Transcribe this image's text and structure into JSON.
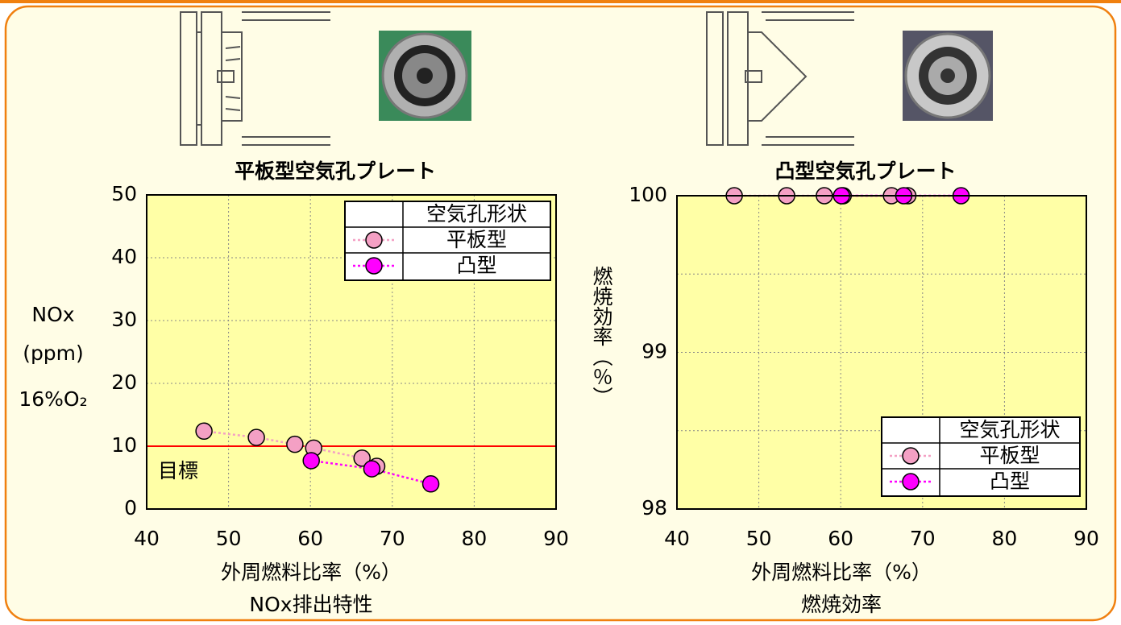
{
  "chart_data": [
    {
      "type": "scatter",
      "title": "平板型空気孔プレート",
      "xlabel": "外周燃料比率（%）",
      "caption": "NOx排出特性",
      "ylabel": [
        "NOx",
        "(ppm)",
        "16%O₂"
      ],
      "xlim": [
        40,
        90
      ],
      "xticks": [
        40,
        50,
        60,
        70,
        80,
        90
      ],
      "ylim": [
        0,
        50
      ],
      "yticks": [
        0,
        10,
        20,
        30,
        40,
        50
      ],
      "grid": true,
      "plot_color": "#ffffa6",
      "reference_line": {
        "value": 10,
        "label": "目標",
        "color": "#ff0000"
      },
      "legend_title": "空気孔形状",
      "legend": "upper right",
      "series": [
        {
          "name": "平板型",
          "color": "#f4a0c4",
          "x": [
            47,
            53.4,
            58.1,
            60.4,
            66.3,
            68.1
          ],
          "values": [
            12.4,
            11.4,
            10.3,
            9.7,
            8.1,
            6.8
          ]
        },
        {
          "name": "凸型",
          "color": "#ff00ff",
          "x": [
            60.1,
            67.5,
            74.7
          ],
          "values": [
            7.7,
            6.4,
            4.0
          ]
        }
      ]
    },
    {
      "type": "scatter",
      "title": "凸型空気孔プレート",
      "xlabel": "外周燃料比率（%）",
      "caption": "燃焼効率",
      "ylabel": [
        "燃焼効率（％）"
      ],
      "xlim": [
        40,
        90
      ],
      "xticks": [
        40,
        50,
        60,
        70,
        80,
        90
      ],
      "ylim": [
        98,
        100
      ],
      "yticks": [
        98,
        99,
        100
      ],
      "minor_yticks": [
        98.5,
        99.5
      ],
      "grid": true,
      "plot_color": "#ffffa6",
      "legend_title": "空気孔形状",
      "legend": "lower right",
      "series": [
        {
          "name": "平板型",
          "color": "#f4a0c4",
          "x": [
            47,
            53.4,
            58,
            60.3,
            66.2,
            68.2
          ],
          "values": [
            100,
            100,
            100,
            100,
            100,
            100
          ]
        },
        {
          "name": "凸型",
          "color": "#ff00ff",
          "x": [
            60.1,
            67.7,
            74.7
          ],
          "values": [
            100,
            100,
            100
          ]
        }
      ]
    }
  ]
}
